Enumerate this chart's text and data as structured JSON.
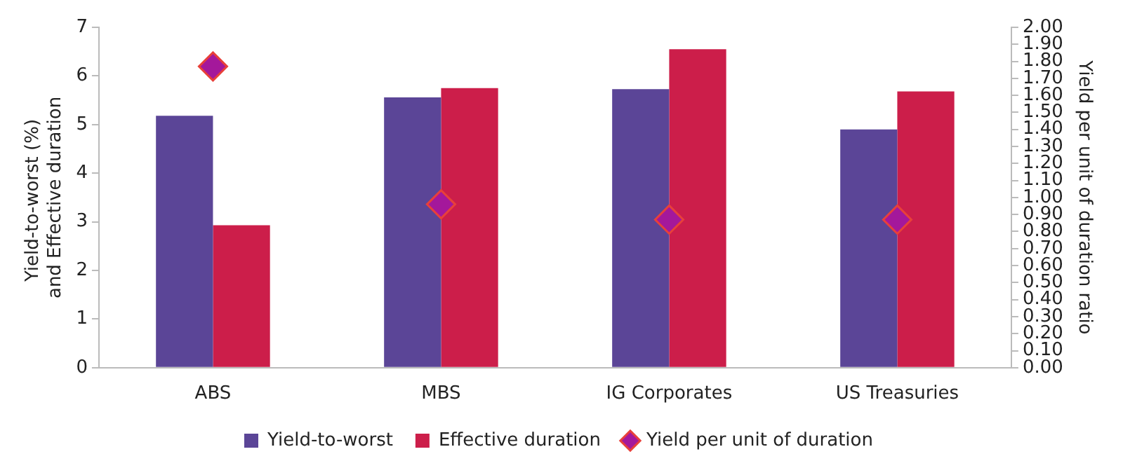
{
  "chart_data": {
    "type": "bar",
    "categories": [
      "ABS",
      "MBS",
      "IG Corporates",
      "US Treasuries"
    ],
    "series": [
      {
        "name": "Yield-to-worst",
        "color": "#5b4597",
        "values": [
          5.18,
          5.56,
          5.73,
          4.9
        ]
      },
      {
        "name": "Effective duration",
        "color": "#cc1e4a",
        "values": [
          2.93,
          5.75,
          6.55,
          5.68
        ]
      },
      {
        "name": "Yield per unit of duration",
        "type": "scatter",
        "axis": "y2",
        "marker": "diamond",
        "color": "#a4189b",
        "x": [
          "ABS",
          "MBS",
          "IG Corporates",
          "US Treasuries"
        ],
        "values": [
          1.77,
          0.96,
          0.87,
          0.87
        ]
      }
    ],
    "ylabel": "Yield-to-worst (%)  and Effective duration",
    "y2label": "Yield per unit of duration ratio",
    "ylim": [
      0,
      7
    ],
    "yticks": [
      0,
      1,
      2,
      3,
      4,
      5,
      6,
      7
    ],
    "y2lim": [
      0,
      2
    ],
    "y2ticks": [
      {
        "value": 0,
        "label": "0.00"
      },
      {
        "value": 0.1,
        "label": "0.10"
      },
      {
        "value": 0.2,
        "label": "0.20"
      },
      {
        "value": 0.3,
        "label": "0.30"
      },
      {
        "value": 0.4,
        "label": "0.40"
      },
      {
        "value": 0.5,
        "label": "0.50"
      },
      {
        "value": 0.6,
        "label": "0.60"
      },
      {
        "value": 0.7,
        "label": "0.70"
      },
      {
        "value": 0.8,
        "label": "0.80"
      },
      {
        "value": 0.9,
        "label": "0.90"
      },
      {
        "value": 1,
        "label": "1.00"
      },
      {
        "value": 1.1,
        "label": "1.10"
      },
      {
        "value": 1.2,
        "label": "1.20"
      },
      {
        "value": 1.3,
        "label": "1.30"
      },
      {
        "value": 1.4,
        "label": "1.40"
      },
      {
        "value": 1.5,
        "label": "1.50"
      },
      {
        "value": 1.6,
        "label": "1.60"
      },
      {
        "value": 1.7,
        "label": "1.70"
      },
      {
        "value": 1.8,
        "label": "1.80"
      },
      {
        "value": 1.9,
        "label": "1.90"
      },
      {
        "value": 2,
        "label": "2.00"
      }
    ],
    "legend": "bottom"
  }
}
